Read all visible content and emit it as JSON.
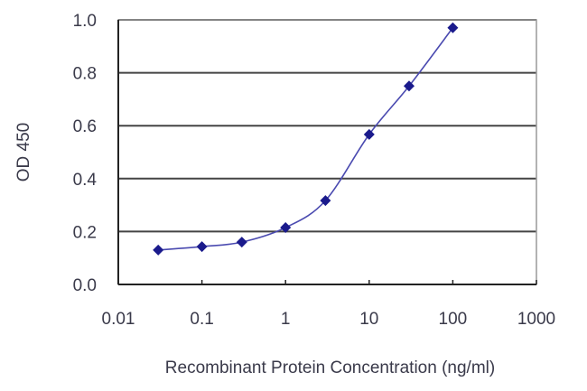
{
  "chart_data": {
    "type": "line",
    "title": "",
    "xlabel": "Recombinant Protein Concentration (ng/ml)",
    "ylabel": "OD 450",
    "xscale": "log",
    "xlim": [
      0.01,
      1000
    ],
    "ylim": [
      0.0,
      1.0
    ],
    "x_ticks": [
      "0.01",
      "0.1",
      "1",
      "10",
      "100",
      "1000"
    ],
    "y_ticks": [
      "0.0",
      "0.2",
      "0.4",
      "0.6",
      "0.8",
      "1.0"
    ],
    "grid": "horizontal",
    "legend": "none",
    "series": [
      {
        "name": "OD 450",
        "color": "#1a1a8c",
        "marker": "diamond",
        "x": [
          0.03,
          0.1,
          0.3,
          1,
          3,
          10,
          30,
          100
        ],
        "values": [
          0.13,
          0.143,
          0.16,
          0.215,
          0.317,
          0.567,
          0.75,
          0.97
        ]
      }
    ]
  }
}
